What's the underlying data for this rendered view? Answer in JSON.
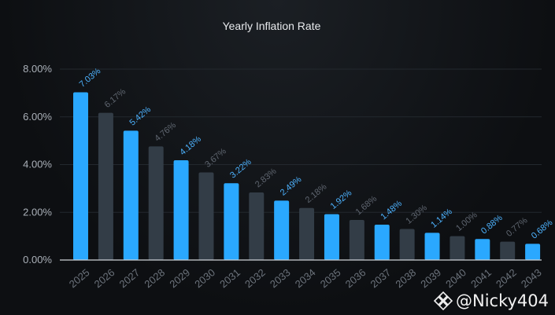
{
  "chart_data": {
    "type": "bar",
    "title": "Yearly Inflation Rate",
    "xlabel": "",
    "ylabel": "",
    "ylim": [
      0,
      8
    ],
    "yticks": [
      "0.00%",
      "2.00%",
      "4.00%",
      "6.00%",
      "8.00%"
    ],
    "categories": [
      "2025",
      "2026",
      "2027",
      "2028",
      "2029",
      "2030",
      "2031",
      "2032",
      "2033",
      "2034",
      "2035",
      "2036",
      "2037",
      "2038",
      "2039",
      "2040",
      "2041",
      "2042",
      "2043"
    ],
    "values": [
      7.03,
      6.17,
      5.42,
      4.76,
      4.18,
      3.67,
      3.22,
      2.83,
      2.49,
      2.18,
      1.92,
      1.68,
      1.48,
      1.3,
      1.14,
      1.0,
      0.88,
      0.77,
      0.68
    ],
    "labels": [
      "7.03%",
      "6.17%",
      "5.42%",
      "4.76%",
      "4.18%",
      "3.67%",
      "3.22%",
      "2.83%",
      "2.49%",
      "2.18%",
      "1.92%",
      "1.68%",
      "1.48%",
      "1.30%",
      "1.14%",
      "1.00%",
      "0.88%",
      "0.77%",
      "0.68%"
    ],
    "grid": true,
    "colors": {
      "highlight_bar": "#2aa8ff",
      "muted_bar": "#333d47",
      "highlight_label": "#4db3ff",
      "muted_label": "#5f6670"
    }
  },
  "watermark": {
    "text": "@Nicky404",
    "icon": "binance-logo-icon"
  }
}
